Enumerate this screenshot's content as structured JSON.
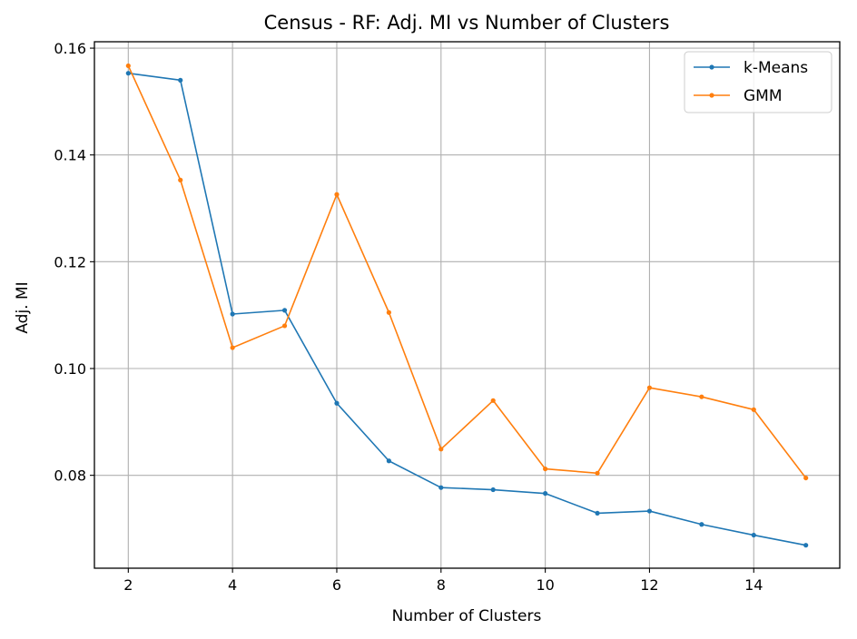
{
  "chart_data": {
    "type": "line",
    "title": "Census - RF: Adj. MI vs Number of Clusters",
    "xlabel": "Number of Clusters",
    "ylabel": "Adj. MI",
    "x": [
      2,
      3,
      4,
      5,
      6,
      7,
      8,
      9,
      10,
      11,
      12,
      13,
      14,
      15
    ],
    "xlim": [
      1.35,
      15.65
    ],
    "ylim": [
      0.0626,
      0.1612
    ],
    "xticks": [
      2,
      4,
      6,
      8,
      10,
      12,
      14
    ],
    "xtick_labels": [
      "2",
      "4",
      "6",
      "8",
      "10",
      "12",
      "14"
    ],
    "yticks": [
      0.08,
      0.1,
      0.12,
      0.14,
      0.16
    ],
    "ytick_labels": [
      "0.08",
      "0.10",
      "0.12",
      "0.14",
      "0.16"
    ],
    "grid": true,
    "legend_position": "top-right",
    "series": [
      {
        "name": "k-Means",
        "color": "#1f77b4",
        "values": [
          0.1553,
          0.154,
          0.1102,
          0.1109,
          0.0935,
          0.0827,
          0.0777,
          0.0773,
          0.0766,
          0.0729,
          0.0733,
          0.0708,
          0.0688,
          0.0669
        ]
      },
      {
        "name": "GMM",
        "color": "#ff7f0e",
        "values": [
          0.1567,
          0.1353,
          0.1039,
          0.108,
          0.1326,
          0.1105,
          0.0849,
          0.094,
          0.0812,
          0.0804,
          0.0964,
          0.0947,
          0.0923,
          0.0795
        ]
      }
    ]
  }
}
